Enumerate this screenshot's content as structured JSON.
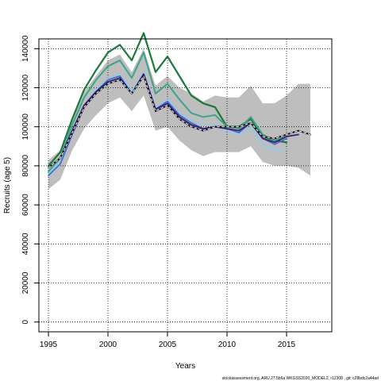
{
  "chart_data": {
    "type": "line",
    "xlabel": "Years",
    "ylabel": "Recruits (age 5)",
    "xlim": [
      1994.2,
      2018.8
    ],
    "ylim": [
      -5000,
      145000
    ],
    "x_ticks": [
      1995,
      2000,
      2005,
      2010,
      2015
    ],
    "y_ticks": [
      0,
      20000,
      40000,
      60000,
      80000,
      100000,
      120000,
      140000
    ],
    "grid": true,
    "footer": "stockassessment.org,  ARU.27.5b6a  WKGSS2020_MODEL2,  r12308 ,  git: c28bdc2a44ad",
    "band": {
      "color": "#bebebe",
      "x": [
        1995,
        1996,
        1997,
        1998,
        1999,
        2000,
        2001,
        2002,
        2003,
        2004,
        2005,
        2006,
        2007,
        2008,
        2009,
        2010,
        2011,
        2012,
        2013,
        2014,
        2015,
        2016,
        2017
      ],
      "lower": [
        68000,
        73000,
        88000,
        99000,
        106000,
        112000,
        115000,
        108000,
        116000,
        98000,
        100000,
        93000,
        88000,
        85000,
        87000,
        87000,
        87000,
        90000,
        82000,
        80000,
        80000,
        79000,
        75000
      ],
      "upper": [
        83000,
        88000,
        104000,
        118000,
        126000,
        134000,
        137000,
        128000,
        140000,
        121000,
        126000,
        120000,
        117000,
        113000,
        116000,
        115000,
        115000,
        121000,
        112000,
        112000,
        116000,
        122000,
        122000
      ]
    },
    "series": [
      {
        "color": "#1a7a3a",
        "width": 2.2,
        "dash": "",
        "x": [
          1995,
          1996,
          1997,
          1998,
          1999,
          2000,
          2001,
          2002,
          2003,
          2004,
          2005,
          2006,
          2007,
          2008,
          2009,
          2010,
          2011,
          2012,
          2013,
          2014,
          2015
        ],
        "values": [
          80000,
          87000,
          104000,
          119000,
          129000,
          138000,
          142000,
          134000,
          148000,
          128000,
          136000,
          126000,
          116000,
          112000,
          110000,
          100000,
          100000,
          104000,
          95000,
          93000,
          92000
        ]
      },
      {
        "color": "#3aa58a",
        "width": 2.0,
        "dash": "",
        "x": [
          1995,
          1996,
          1997,
          1998,
          1999,
          2000,
          2001,
          2002,
          2003,
          2004,
          2005,
          2006,
          2007,
          2008,
          2009,
          2010,
          2011,
          2012,
          2013,
          2014,
          2015
        ],
        "values": [
          77000,
          84000,
          101000,
          115000,
          124000,
          131000,
          134000,
          125000,
          138000,
          117000,
          122000,
          114000,
          107000,
          105000,
          106000,
          100000,
          99000,
          105000,
          96000,
          93000,
          95000
        ]
      },
      {
        "color": "#88ccee",
        "width": 1.6,
        "dash": "",
        "x": [
          1995,
          1996,
          1997,
          1998,
          1999,
          2000,
          2001,
          2002,
          2003,
          2004,
          2005,
          2006,
          2007,
          2008,
          2009,
          2010,
          2011,
          2012,
          2013,
          2014,
          2015
        ],
        "values": [
          76000,
          82000,
          97000,
          111000,
          119000,
          125000,
          127000,
          118000,
          128000,
          110000,
          114000,
          107000,
          103000,
          101000,
          101000,
          98000,
          96000,
          100000,
          91000,
          88000,
          89000
        ]
      },
      {
        "color": "#4466cc",
        "width": 1.6,
        "dash": "",
        "x": [
          1995,
          1996,
          1997,
          1998,
          1999,
          2000,
          2001,
          2002,
          2003,
          2004,
          2005,
          2006,
          2007,
          2008,
          2009,
          2010,
          2011,
          2012,
          2013,
          2014,
          2015
        ],
        "values": [
          75000,
          81000,
          96000,
          110000,
          118000,
          124000,
          126000,
          117000,
          127000,
          109000,
          113000,
          106000,
          102000,
          99000,
          100000,
          99000,
          97000,
          102000,
          94000,
          91000,
          94000
        ]
      },
      {
        "color": "#3b1c78",
        "width": 1.8,
        "dash": "",
        "x": [
          1995,
          1996,
          1997,
          1998,
          1999,
          2000,
          2001,
          2002,
          2003,
          2004,
          2005,
          2006,
          2007,
          2008,
          2009,
          2010,
          2011,
          2012,
          2013,
          2014,
          2015,
          2016
        ],
        "values": [
          79000,
          84000,
          98000,
          111000,
          118000,
          123000,
          125000,
          117000,
          127000,
          109000,
          112000,
          105000,
          101000,
          99000,
          100000,
          99000,
          98000,
          102000,
          94000,
          92000,
          95000,
          96000
        ]
      },
      {
        "color": "#000000",
        "width": 1.8,
        "dash": "",
        "x": [
          1995,
          1996,
          1997,
          1998,
          1999,
          2000,
          2001,
          2002,
          2003,
          2004,
          2005,
          2006,
          2007,
          2008,
          2009,
          2010,
          2011,
          2012,
          2013,
          2014,
          2015,
          2016,
          2017
        ],
        "values": [
          79000,
          84000,
          97000,
          110000,
          117000,
          122000,
          124000,
          117000,
          126000,
          108000,
          111000,
          104000,
          100000,
          98000,
          100000,
          100000,
          100000,
          102000,
          95000,
          94000,
          96000,
          98000,
          96000
        ]
      },
      {
        "color": "#ffffff",
        "width": 1.0,
        "dash": "3,3",
        "x": [
          1995,
          1996,
          1997,
          1998,
          1999,
          2000,
          2001,
          2002,
          2003,
          2004,
          2005,
          2006,
          2007,
          2008,
          2009,
          2010,
          2011,
          2012,
          2013,
          2014,
          2015,
          2016,
          2017
        ],
        "values": [
          79000,
          84000,
          97000,
          110000,
          117000,
          122000,
          124000,
          117000,
          126000,
          108000,
          111000,
          104000,
          100000,
          98000,
          100000,
          100000,
          100000,
          102000,
          95000,
          94000,
          96000,
          98000,
          96000
        ]
      }
    ]
  }
}
